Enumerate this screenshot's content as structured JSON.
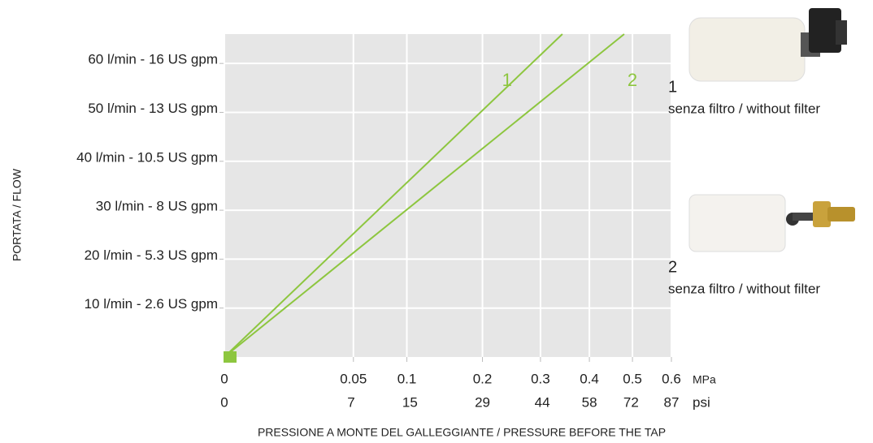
{
  "chart_data": {
    "type": "line",
    "xlabel": "PRESSIONE A MONTE DEL GALLEGGIANTE / PRESSURE BEFORE THE TAP",
    "ylabel": "PORTATA / FLOW",
    "x_unit": "MPa",
    "x2_unit": "psi",
    "xscale": "sqrt",
    "xlim": [
      0,
      0.6
    ],
    "xticks": [
      0,
      0.05,
      0.1,
      0.2,
      0.3,
      0.4,
      0.5,
      0.6
    ],
    "x2lim": [
      0,
      87
    ],
    "x2ticks": [
      0,
      7,
      15,
      29,
      44,
      58,
      72,
      87
    ],
    "ylim": [
      0,
      66
    ],
    "yticks": [
      {
        "value": 10,
        "label": "10 l/min - 2.6 US gpm"
      },
      {
        "value": 20,
        "label": "20 l/min - 5.3 US gpm"
      },
      {
        "value": 30,
        "label": "30 l/min - 8 US gpm"
      },
      {
        "value": 40,
        "label": "40 l/min - 10.5 US gpm"
      },
      {
        "value": 50,
        "label": "50 l/min - 13 US gpm"
      },
      {
        "value": 60,
        "label": "60 l/min - 16 US gpm"
      }
    ],
    "grid": true,
    "series": [
      {
        "name": "1",
        "description": "senza filtro / without filter",
        "color": "#8dc63f",
        "x": [
          0,
          0.343
        ],
        "values": [
          0,
          66
        ]
      },
      {
        "name": "2",
        "description": "senza filtro / without filter",
        "color": "#8dc63f",
        "x": [
          0,
          0.48
        ],
        "values": [
          0,
          66
        ]
      }
    ]
  }
}
